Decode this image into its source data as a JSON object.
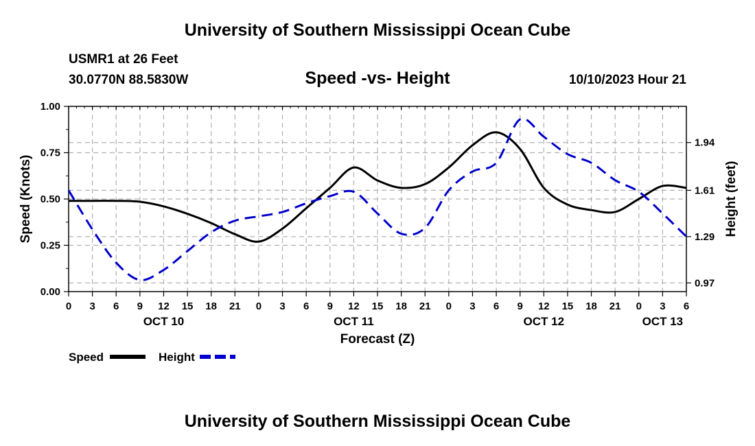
{
  "header": {
    "title": "University of Southern Mississippi Ocean Cube",
    "station": "USMR1 at 26 Feet",
    "coordinates": "30.0770N  88.5830W",
    "subtitle": "Speed -vs- Height",
    "datetime": "10/10/2023 Hour 21"
  },
  "footer": {
    "title": "University of Southern Mississippi Ocean Cube"
  },
  "chart_data": {
    "type": "line",
    "xlabel": "Forecast (Z)",
    "ylabel_left": "Speed (Knots)",
    "ylabel_right": "Height (feet)",
    "x_range_hours": [
      0,
      78
    ],
    "x_tick_labels": [
      "0",
      "3",
      "6",
      "9",
      "12",
      "15",
      "18",
      "21",
      "0",
      "3",
      "6",
      "9",
      "12",
      "15",
      "18",
      "21",
      "0",
      "3",
      "6",
      "9",
      "12",
      "15",
      "18",
      "21",
      "0",
      "3",
      "6"
    ],
    "date_labels": [
      {
        "label": "OCT 10",
        "hour": 12
      },
      {
        "label": "OCT 11",
        "hour": 36
      },
      {
        "label": "OCT 12",
        "hour": 60
      },
      {
        "label": "OCT 13",
        "hour": 75
      }
    ],
    "y_left_range": [
      0,
      1
    ],
    "y_left_ticks": [
      "0.00",
      "0.25",
      "0.50",
      "0.75",
      "1.00"
    ],
    "y_right_ticks": [
      {
        "label": "0.97",
        "value": 0.97
      },
      {
        "label": "1.29",
        "value": 1.29
      },
      {
        "label": "1.61",
        "value": 1.61
      },
      {
        "label": "1.94",
        "value": 1.94
      }
    ],
    "y_right_range": [
      0.91,
      2.19
    ],
    "grid": true,
    "legend": [
      {
        "name": "Speed",
        "color": "#000000",
        "style": "solid"
      },
      {
        "name": "Height",
        "color": "#0000cc",
        "style": "dashed"
      }
    ],
    "series": [
      {
        "name": "Speed",
        "axis": "left",
        "color": "#000000",
        "x": [
          0,
          3,
          6,
          9,
          12,
          15,
          18,
          21,
          24,
          27,
          30,
          33,
          36,
          39,
          42,
          45,
          48,
          51,
          54,
          57,
          60,
          63,
          66,
          69,
          72,
          75,
          78
        ],
        "y": [
          0.49,
          0.49,
          0.49,
          0.485,
          0.46,
          0.42,
          0.37,
          0.31,
          0.27,
          0.34,
          0.45,
          0.56,
          0.67,
          0.6,
          0.56,
          0.58,
          0.67,
          0.79,
          0.86,
          0.77,
          0.56,
          0.47,
          0.44,
          0.43,
          0.5,
          0.57,
          0.56
        ]
      },
      {
        "name": "Height",
        "axis": "right",
        "color": "#0000cc",
        "x": [
          0,
          3,
          6,
          9,
          12,
          15,
          18,
          21,
          24,
          27,
          30,
          33,
          36,
          39,
          42,
          45,
          48,
          51,
          54,
          57,
          60,
          63,
          66,
          69,
          72,
          75,
          78
        ],
        "y": [
          1.61,
          1.34,
          1.11,
          0.99,
          1.06,
          1.19,
          1.32,
          1.4,
          1.43,
          1.46,
          1.52,
          1.57,
          1.6,
          1.45,
          1.31,
          1.35,
          1.61,
          1.74,
          1.8,
          2.1,
          1.98,
          1.86,
          1.8,
          1.68,
          1.6,
          1.45,
          1.29
        ]
      }
    ]
  }
}
